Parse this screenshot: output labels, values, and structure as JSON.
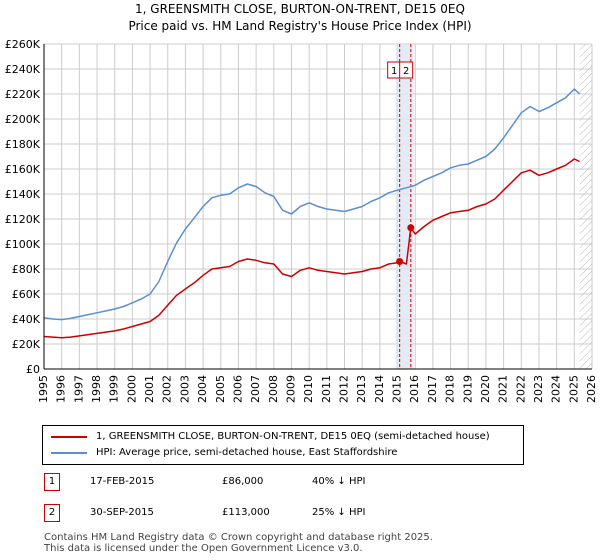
{
  "title_line1": "1, GREENSMITH CLOSE, BURTON-ON-TRENT, DE15 0EQ",
  "title_line2": "Price paid vs. HM Land Registry's House Price Index (HPI)",
  "colors": {
    "property": "#cc0000",
    "hpi": "#5b8fd1",
    "shade": "#dde6f4",
    "grid": "#cccccc"
  },
  "chart_data": {
    "type": "line",
    "xlim": [
      1995,
      2026
    ],
    "ylim": [
      0,
      260000
    ],
    "y_ticks": [
      0,
      20000,
      40000,
      60000,
      80000,
      100000,
      120000,
      140000,
      160000,
      180000,
      200000,
      220000,
      240000,
      260000
    ],
    "y_tick_labels": [
      "£0",
      "£20K",
      "£40K",
      "£60K",
      "£80K",
      "£100K",
      "£120K",
      "£140K",
      "£160K",
      "£180K",
      "£200K",
      "£220K",
      "£240K",
      "£260K"
    ],
    "x_ticks": [
      1995,
      1996,
      1997,
      1998,
      1999,
      2000,
      2001,
      2002,
      2003,
      2004,
      2005,
      2006,
      2007,
      2008,
      2009,
      2010,
      2011,
      2012,
      2013,
      2014,
      2015,
      2016,
      2017,
      2018,
      2019,
      2020,
      2021,
      2022,
      2023,
      2024,
      2025,
      2026
    ],
    "x_tick_labels": [
      "1995",
      "1996",
      "1997",
      "1998",
      "1999",
      "2000",
      "2001",
      "2002",
      "2003",
      "2004",
      "2005",
      "2006",
      "2007",
      "2008",
      "2009",
      "2010",
      "2011",
      "2012",
      "2013",
      "2014",
      "2015",
      "2016",
      "2017",
      "2018",
      "2019",
      "2020",
      "2021",
      "2022",
      "2023",
      "2024",
      "2025",
      "2026"
    ],
    "shaded_range": [
      2014.9,
      2015.9
    ],
    "future_hatch_start": 2025.3,
    "series": [
      {
        "name": "1, GREENSMITH CLOSE, BURTON-ON-TRENT, DE15 0EQ (semi-detached house)",
        "color": "#cc0000",
        "x": [
          1995.0,
          1995.5,
          1996.0,
          1996.5,
          1997.0,
          1997.5,
          1998.0,
          1998.5,
          1999.0,
          1999.5,
          2000.0,
          2000.5,
          2001.0,
          2001.5,
          2002.0,
          2002.5,
          2003.0,
          2003.5,
          2004.0,
          2004.5,
          2005.0,
          2005.5,
          2006.0,
          2006.5,
          2007.0,
          2007.5,
          2008.0,
          2008.5,
          2009.0,
          2009.5,
          2010.0,
          2010.5,
          2011.0,
          2011.5,
          2012.0,
          2012.5,
          2013.0,
          2013.5,
          2014.0,
          2014.5,
          2015.0,
          2015.12,
          2015.5,
          2015.75,
          2016.0,
          2016.5,
          2017.0,
          2017.5,
          2018.0,
          2018.5,
          2019.0,
          2019.5,
          2020.0,
          2020.5,
          2021.0,
          2021.5,
          2022.0,
          2022.5,
          2023.0,
          2023.5,
          2024.0,
          2024.5,
          2025.0,
          2025.3
        ],
        "values": [
          26000,
          25500,
          25000,
          25500,
          26500,
          27500,
          28500,
          29500,
          30500,
          32000,
          34000,
          36000,
          38000,
          43000,
          51000,
          59000,
          64000,
          69000,
          75000,
          80000,
          81000,
          82000,
          86000,
          88000,
          87000,
          85000,
          84000,
          76000,
          74000,
          79000,
          81000,
          79000,
          78000,
          77000,
          76000,
          77000,
          78000,
          80000,
          81000,
          84000,
          85000,
          86000,
          84000,
          113000,
          108000,
          114000,
          119000,
          122000,
          125000,
          126000,
          127000,
          130000,
          132000,
          136000,
          143000,
          150000,
          157000,
          159000,
          155000,
          157000,
          160000,
          163000,
          168000,
          166000
        ]
      },
      {
        "name": "HPI: Average price, semi-detached house, East Staffordshire",
        "color": "#5b8fd1",
        "x": [
          1995.0,
          1995.5,
          1996.0,
          1996.5,
          1997.0,
          1997.5,
          1998.0,
          1998.5,
          1999.0,
          1999.5,
          2000.0,
          2000.5,
          2001.0,
          2001.5,
          2002.0,
          2002.5,
          2003.0,
          2003.5,
          2004.0,
          2004.5,
          2005.0,
          2005.5,
          2006.0,
          2006.5,
          2007.0,
          2007.5,
          2008.0,
          2008.5,
          2009.0,
          2009.5,
          2010.0,
          2010.5,
          2011.0,
          2011.5,
          2012.0,
          2012.5,
          2013.0,
          2013.5,
          2014.0,
          2014.5,
          2015.0,
          2015.5,
          2016.0,
          2016.5,
          2017.0,
          2017.5,
          2018.0,
          2018.5,
          2019.0,
          2019.5,
          2020.0,
          2020.5,
          2021.0,
          2021.5,
          2022.0,
          2022.5,
          2023.0,
          2023.5,
          2024.0,
          2024.5,
          2025.0,
          2025.3
        ],
        "values": [
          41000,
          40000,
          39500,
          40500,
          42000,
          43500,
          45000,
          46500,
          48000,
          50000,
          53000,
          56000,
          60000,
          70000,
          86000,
          101000,
          112000,
          121000,
          130000,
          137000,
          139000,
          140000,
          145000,
          148000,
          146000,
          141000,
          138000,
          127000,
          124000,
          130000,
          133000,
          130000,
          128000,
          127000,
          126000,
          128000,
          130000,
          134000,
          137000,
          141000,
          143000,
          145000,
          147000,
          151000,
          154000,
          157000,
          161000,
          163000,
          164000,
          167000,
          170000,
          176000,
          185000,
          195000,
          205000,
          210000,
          206000,
          209000,
          213000,
          217000,
          224000,
          220000
        ]
      }
    ],
    "sale_points": [
      {
        "label": "1",
        "x": 2015.12,
        "value": 86000
      },
      {
        "label": "2",
        "x": 2015.75,
        "value": 113000
      }
    ]
  },
  "legend": {
    "property_label": "1, GREENSMITH CLOSE, BURTON-ON-TRENT, DE15 0EQ (semi-detached house)",
    "hpi_label": "HPI: Average price, semi-detached house, East Staffordshire"
  },
  "transactions": [
    {
      "num": "1",
      "date": "17-FEB-2015",
      "price": "£86,000",
      "hpi": "40% ↓ HPI"
    },
    {
      "num": "2",
      "date": "30-SEP-2015",
      "price": "£113,000",
      "hpi": "25% ↓ HPI"
    }
  ],
  "footer": {
    "line1": "Contains HM Land Registry data © Crown copyright and database right 2025.",
    "line2": "This data is licensed under the Open Government Licence v3.0."
  }
}
